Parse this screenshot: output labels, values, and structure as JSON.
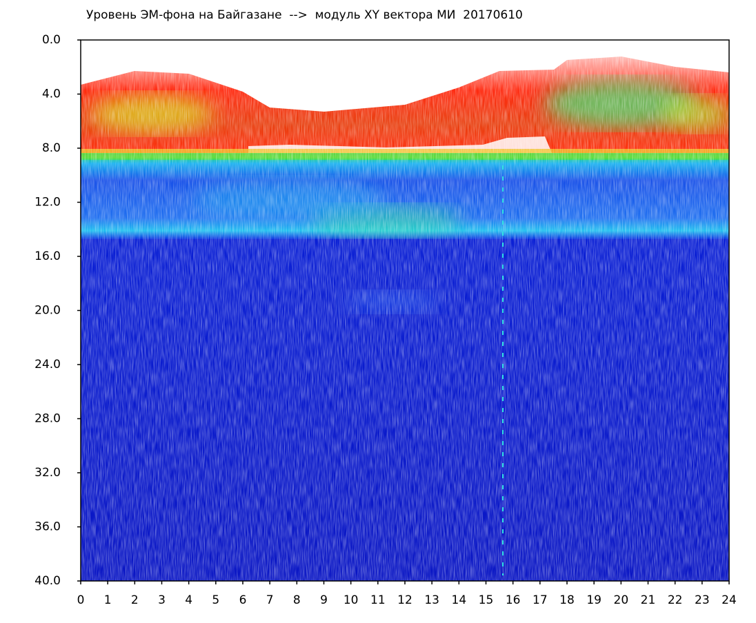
{
  "chart_data": {
    "type": "spectrogram",
    "title": "Уровень ЭМ-фона на Байгазане  -->  модуль XY вектора МИ  20170610",
    "xlim": [
      0,
      24
    ],
    "xticks": [
      0,
      1,
      2,
      3,
      4,
      5,
      6,
      7,
      8,
      9,
      10,
      11,
      12,
      13,
      14,
      15,
      16,
      17,
      18,
      19,
      20,
      21,
      22,
      23,
      24
    ],
    "ylim": [
      0,
      40
    ],
    "yinverted": true,
    "yticks": [
      {
        "value": 0,
        "label": "0.0"
      },
      {
        "value": 4,
        "label": "4.0"
      },
      {
        "value": 8,
        "label": "8.0"
      },
      {
        "value": 12,
        "label": "12.0"
      },
      {
        "value": 16,
        "label": "16.0"
      },
      {
        "value": 20,
        "label": "20.0"
      },
      {
        "value": 24,
        "label": "24.0"
      },
      {
        "value": 28,
        "label": "28.0"
      },
      {
        "value": 32,
        "label": "32.0"
      },
      {
        "value": 36,
        "label": "36.0"
      },
      {
        "value": 40,
        "label": "40.0"
      }
    ]
  }
}
